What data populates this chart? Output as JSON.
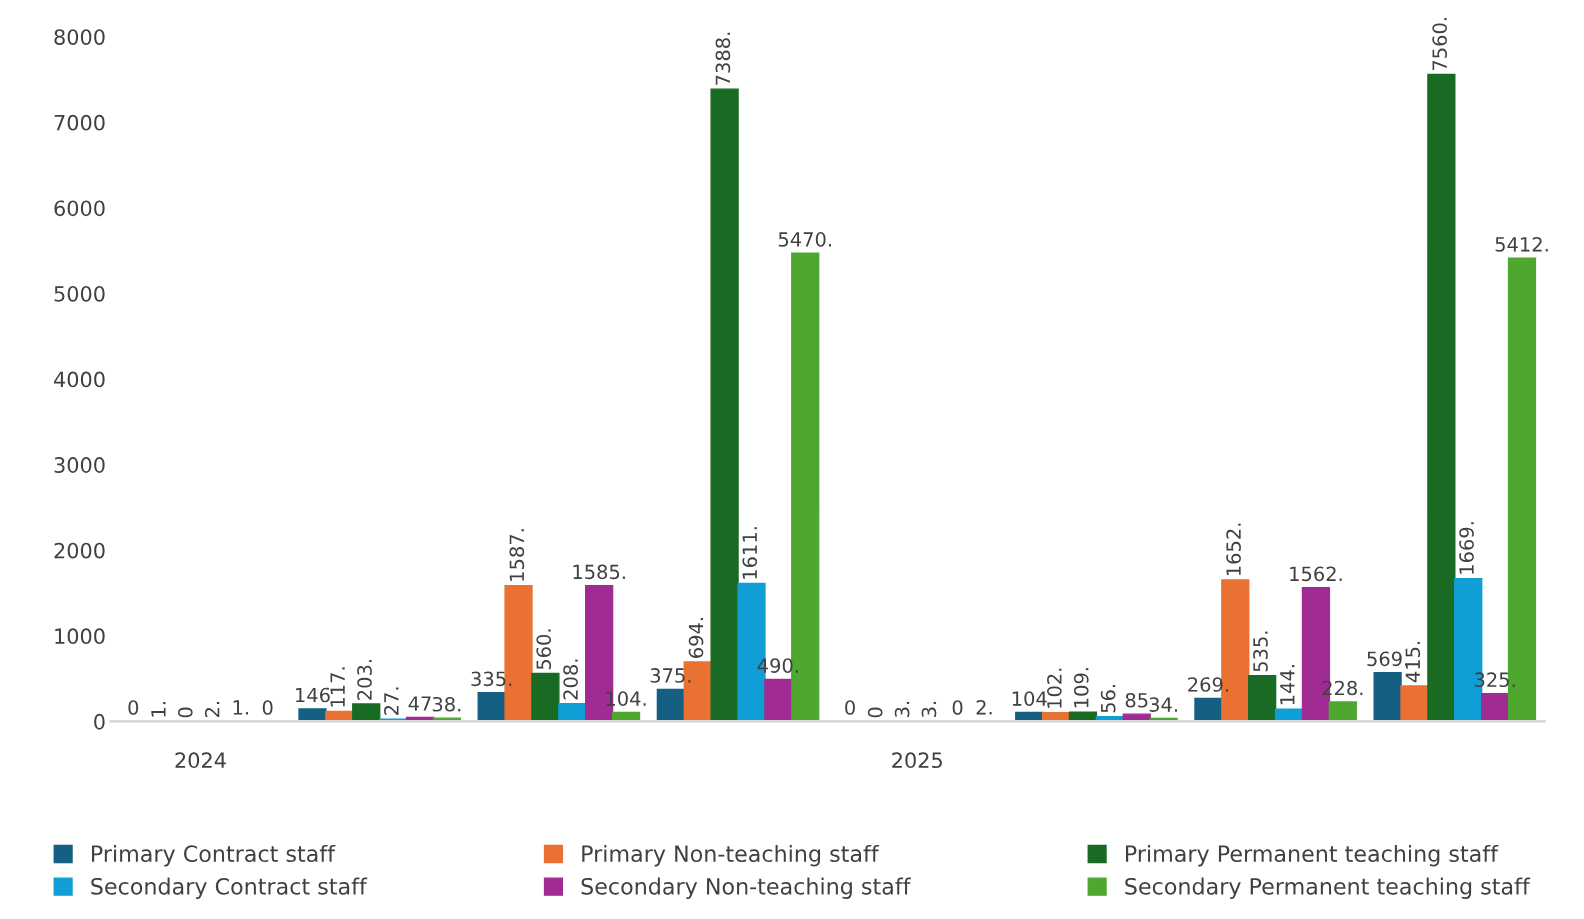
{
  "chart_data": {
    "type": "bar",
    "categories": [
      "2024",
      null,
      null,
      null,
      "2025",
      null,
      null,
      null
    ],
    "series": [
      {
        "name": "Primary Contract staff",
        "color": "#156082",
        "values": [
          0,
          146,
          335,
          375,
          0,
          104,
          269,
          569
        ],
        "value_labels": [
          "0",
          "146",
          "335.",
          "375.",
          "0",
          "104",
          "269.",
          "569."
        ]
      },
      {
        "name": "Primary Non-teaching staff",
        "color": "#e97132",
        "values": [
          1,
          117,
          1587,
          694,
          0,
          102,
          1652,
          415
        ],
        "value_labels": [
          "1.",
          "117.",
          "1587.",
          "694.",
          "0",
          "102.",
          "1652.",
          "415."
        ]
      },
      {
        "name": "Primary Permanent teaching staff",
        "color": "#196b24",
        "values": [
          0,
          203,
          560,
          7388,
          3,
          109,
          535,
          7560
        ],
        "value_labels": [
          "0",
          "203.",
          "560.",
          "7388.",
          "3.",
          "109.",
          "535.",
          "7560."
        ]
      },
      {
        "name": "Secondary Contract staff",
        "color": "#0f9ed5",
        "values": [
          2,
          27,
          208,
          1611,
          3,
          56,
          144,
          1669
        ],
        "value_labels": [
          "2.",
          "27.",
          "208.",
          "1611.",
          "3.",
          "56.",
          "144.",
          "1669."
        ]
      },
      {
        "name": "Secondary Non-teaching staff",
        "color": "#a02b93",
        "values": [
          1,
          47,
          1585,
          490,
          0,
          85,
          1562,
          325
        ],
        "value_labels": [
          "1.",
          "47",
          "1585.",
          "490.",
          "0",
          "85",
          "1562.",
          "325."
        ]
      },
      {
        "name": "Secondary Permanent teaching staff",
        "color": "#4ea72e",
        "values": [
          0,
          38,
          104,
          5470,
          2,
          34,
          228,
          5412
        ],
        "value_labels": [
          "0",
          "38.",
          "104.",
          "5470.",
          "2.",
          "34.",
          "228.",
          "5412."
        ]
      }
    ],
    "ylim": [
      0,
      8000
    ],
    "yticks": [
      0,
      1000,
      2000,
      3000,
      4000,
      5000,
      6000,
      7000,
      8000
    ],
    "grid": false,
    "legend": "bottom"
  }
}
